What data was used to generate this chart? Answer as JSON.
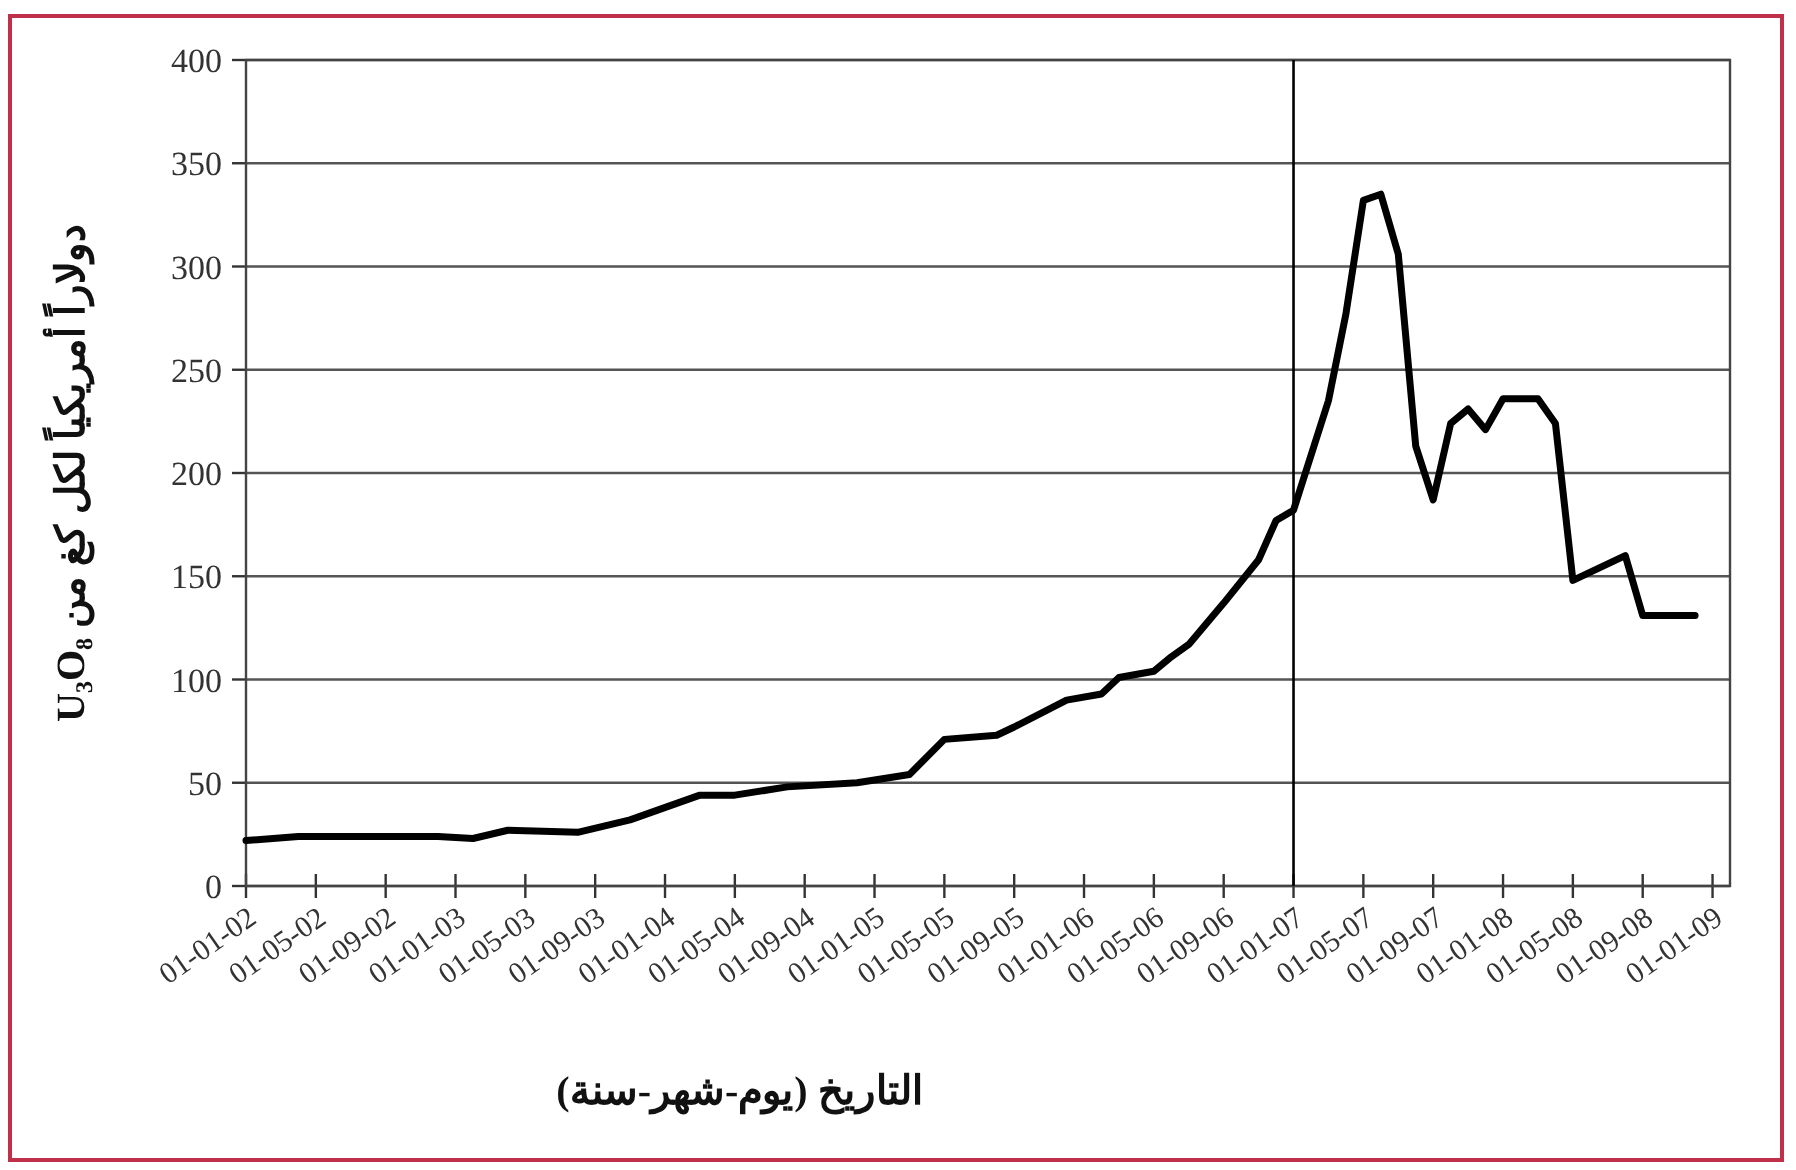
{
  "chart_data": {
    "type": "line",
    "xlabel": "التاريخ (يوم-شهر-سنة)",
    "ylabel": "دولاراً أمريكياً لكل كغ من U₃O₈",
    "x": [
      "2002-01",
      "2002-04",
      "2002-12",
      "2003-02",
      "2003-04",
      "2003-08",
      "2003-11",
      "2004-03",
      "2004-05",
      "2004-08",
      "2004-12",
      "2005-03",
      "2005-05",
      "2005-08",
      "2005-09",
      "2005-12",
      "2006-02",
      "2006-03",
      "2006-05",
      "2006-06",
      "2006-07",
      "2006-09",
      "2006-11",
      "2006-12",
      "2007-01",
      "2007-03",
      "2007-04",
      "2007-05",
      "2007-06",
      "2007-07",
      "2007-08",
      "2007-09",
      "2007-10",
      "2007-11",
      "2007-12",
      "2008-01",
      "2008-03",
      "2008-04",
      "2008-05",
      "2008-08",
      "2008-09",
      "2008-12"
    ],
    "series": [
      {
        "color": "#000000",
        "values": [
          22,
          24,
          24,
          23,
          27,
          26,
          32,
          44,
          44,
          48,
          50,
          54,
          71,
          73,
          77,
          90,
          93,
          101,
          104,
          111,
          117,
          137,
          158,
          177,
          182,
          235,
          277,
          332,
          335,
          306,
          213,
          187,
          224,
          231,
          221,
          236,
          236,
          224,
          148,
          160,
          131,
          131
        ]
      }
    ],
    "xlim": [
      "2002-01",
      "2009-02"
    ],
    "xticks": [
      {
        "value": "2002-01",
        "label": "01-01-02"
      },
      {
        "value": "2002-05",
        "label": "01-05-02"
      },
      {
        "value": "2002-09",
        "label": "01-09-02"
      },
      {
        "value": "2003-01",
        "label": "01-01-03"
      },
      {
        "value": "2003-05",
        "label": "01-05-03"
      },
      {
        "value": "2003-09",
        "label": "01-09-03"
      },
      {
        "value": "2004-01",
        "label": "01-01-04"
      },
      {
        "value": "2004-05",
        "label": "01-05-04"
      },
      {
        "value": "2004-09",
        "label": "01-09-04"
      },
      {
        "value": "2005-01",
        "label": "01-01-05"
      },
      {
        "value": "2005-05",
        "label": "01-05-05"
      },
      {
        "value": "2005-09",
        "label": "01-09-05"
      },
      {
        "value": "2006-01",
        "label": "01-01-06"
      },
      {
        "value": "2006-05",
        "label": "01-05-06"
      },
      {
        "value": "2006-09",
        "label": "01-09-06"
      },
      {
        "value": "2007-01",
        "label": "01-01-07"
      },
      {
        "value": "2007-05",
        "label": "01-05-07"
      },
      {
        "value": "2007-09",
        "label": "01-09-07"
      },
      {
        "value": "2008-01",
        "label": "01-01-08"
      },
      {
        "value": "2008-05",
        "label": "01-05-08"
      },
      {
        "value": "2008-09",
        "label": "01-09-08"
      },
      {
        "value": "2009-01",
        "label": "01-01-09"
      }
    ],
    "ylim": [
      0,
      400
    ],
    "yticks": [
      0,
      50,
      100,
      150,
      200,
      250,
      300,
      350,
      400
    ],
    "grid": "y",
    "ref_lines": [
      {
        "axis": "x",
        "value": "2007-01",
        "color": "#000000"
      }
    ]
  }
}
